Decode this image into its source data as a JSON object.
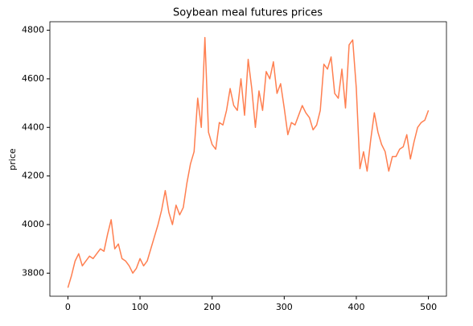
{
  "chart_data": {
    "type": "line",
    "title": "Soybean meal futures prices",
    "ylabel": "price",
    "x": [
      0,
      5,
      10,
      15,
      20,
      25,
      30,
      35,
      40,
      45,
      50,
      55,
      60,
      65,
      70,
      75,
      80,
      85,
      90,
      95,
      100,
      105,
      110,
      115,
      120,
      125,
      130,
      135,
      140,
      145,
      150,
      155,
      160,
      165,
      170,
      175,
      180,
      185,
      190,
      195,
      200,
      205,
      210,
      215,
      220,
      225,
      230,
      235,
      240,
      245,
      250,
      255,
      260,
      265,
      270,
      275,
      280,
      285,
      290,
      295,
      300,
      305,
      310,
      315,
      320,
      325,
      330,
      335,
      340,
      345,
      350,
      355,
      360,
      365,
      370,
      375,
      380,
      385,
      390,
      395,
      400,
      405,
      410,
      415,
      420,
      425,
      430,
      435,
      440,
      445,
      450,
      455,
      460,
      465,
      470,
      475,
      480,
      485,
      490,
      495,
      500
    ],
    "series": [
      {
        "name": "price",
        "color": "#ff7f50",
        "values": [
          3740,
          3790,
          3850,
          3880,
          3830,
          3850,
          3870,
          3860,
          3880,
          3900,
          3890,
          3960,
          4020,
          3900,
          3920,
          3860,
          3850,
          3830,
          3800,
          3820,
          3860,
          3830,
          3850,
          3900,
          3950,
          4000,
          4060,
          4140,
          4050,
          4000,
          4080,
          4040,
          4070,
          4170,
          4250,
          4300,
          4520,
          4400,
          4770,
          4380,
          4330,
          4310,
          4420,
          4410,
          4470,
          4560,
          4490,
          4470,
          4600,
          4450,
          4680,
          4560,
          4400,
          4550,
          4470,
          4630,
          4600,
          4670,
          4540,
          4580,
          4480,
          4370,
          4420,
          4410,
          4450,
          4490,
          4460,
          4440,
          4390,
          4410,
          4470,
          4660,
          4640,
          4690,
          4540,
          4520,
          4640,
          4480,
          4740,
          4760,
          4560,
          4230,
          4300,
          4220,
          4350,
          4460,
          4380,
          4330,
          4300,
          4220,
          4280,
          4280,
          4310,
          4320,
          4370,
          4270,
          4340,
          4400,
          4420,
          4430,
          4470
        ]
      }
    ],
    "xlim": [
      -25,
      525
    ],
    "ylim": [
      3705,
      4835
    ],
    "xticks": [
      0,
      100,
      200,
      300,
      400,
      500
    ],
    "yticks": [
      3800,
      4000,
      4200,
      4400,
      4600,
      4800
    ]
  }
}
